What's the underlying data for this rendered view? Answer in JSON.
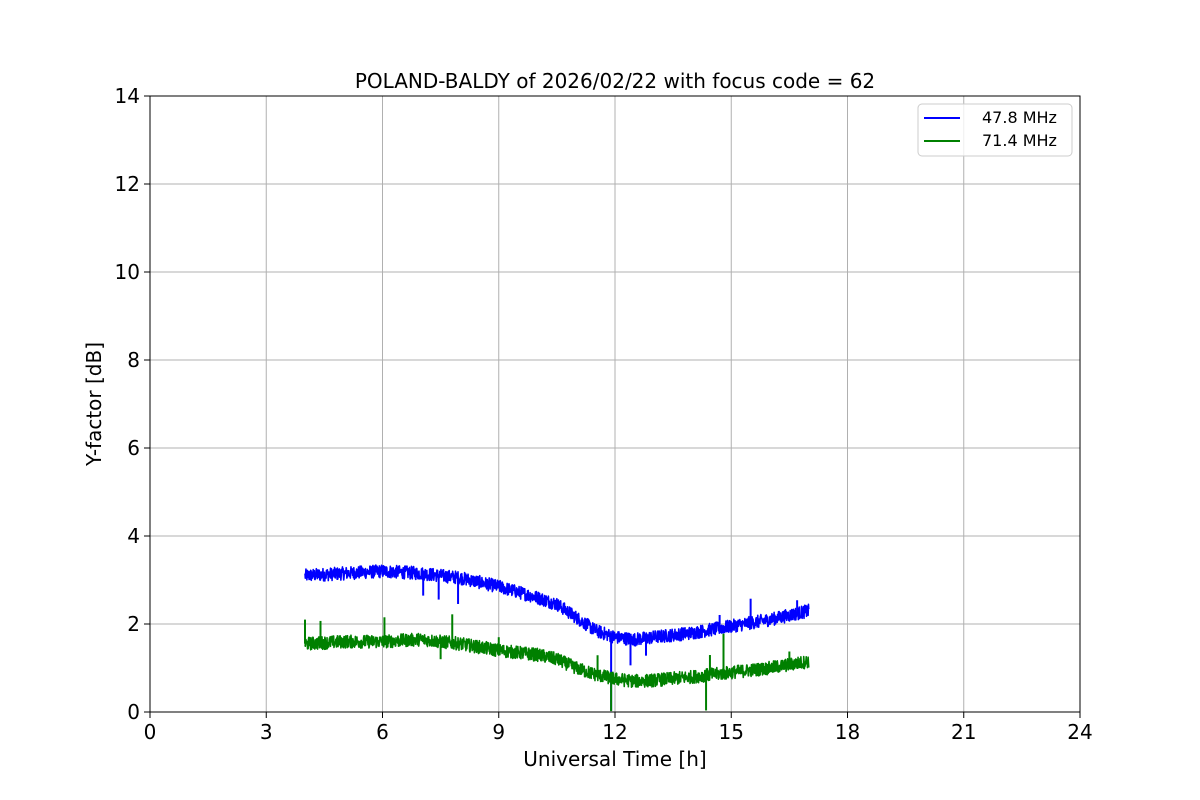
{
  "chart_data": {
    "type": "line",
    "title": "POLAND-BALDY of 2026/02/22 with focus code = 62",
    "xlabel": "Universal Time [h]",
    "ylabel": "Y-factor [dB]",
    "xlim": [
      0,
      24
    ],
    "ylim": [
      0,
      14
    ],
    "xticks": [
      0,
      3,
      6,
      9,
      12,
      15,
      18,
      21,
      24
    ],
    "yticks": [
      0,
      2,
      4,
      6,
      8,
      10,
      12,
      14
    ],
    "grid": true,
    "legend_position": "top-right",
    "series": [
      {
        "name": "47.8 MHz",
        "color": "#0000ff",
        "x": [
          4.0,
          5.0,
          6.0,
          7.0,
          8.0,
          9.0,
          10.0,
          10.5,
          11.0,
          11.5,
          12.0,
          12.5,
          13.0,
          14.0,
          15.0,
          16.0,
          17.0
        ],
        "values": [
          3.1,
          3.15,
          3.2,
          3.15,
          3.05,
          2.85,
          2.6,
          2.45,
          2.15,
          1.85,
          1.7,
          1.65,
          1.7,
          1.8,
          1.95,
          2.1,
          2.3
        ]
      },
      {
        "name": "71.4 MHz",
        "color": "#008000",
        "x": [
          4.0,
          5.0,
          6.0,
          7.0,
          8.0,
          9.0,
          10.0,
          10.5,
          11.0,
          11.5,
          12.0,
          12.5,
          13.0,
          14.0,
          15.0,
          16.0,
          17.0
        ],
        "values": [
          1.55,
          1.6,
          1.6,
          1.65,
          1.55,
          1.4,
          1.3,
          1.2,
          1.0,
          0.85,
          0.75,
          0.7,
          0.72,
          0.8,
          0.9,
          1.0,
          1.15
        ]
      }
    ]
  }
}
